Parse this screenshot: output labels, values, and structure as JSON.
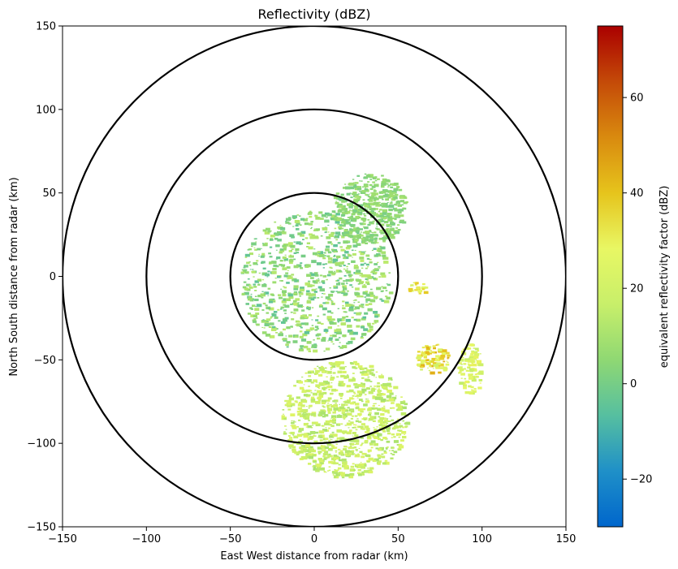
{
  "chart_data": {
    "type": "heatmap",
    "title": "Reflectivity (dBZ)",
    "xlabel": "East West distance from radar (km)",
    "ylabel": "North South distance from radar (km)",
    "xlim": [
      -150,
      150
    ],
    "ylim": [
      -150,
      150
    ],
    "x_ticks": [
      -150,
      -100,
      -50,
      0,
      50,
      100,
      150
    ],
    "y_ticks": [
      -150,
      -100,
      -50,
      0,
      50,
      100,
      150
    ],
    "x_tick_labels": [
      "−150",
      "−100",
      "−50",
      "0",
      "50",
      "100",
      "150"
    ],
    "y_tick_labels": [
      "−150",
      "−100",
      "−50",
      "0",
      "50",
      "100",
      "150"
    ],
    "range_rings_km": [
      50,
      100,
      150
    ],
    "grid": false,
    "colorbar": {
      "label": "equivalent reflectivity factor (dBZ)",
      "range": [
        -30,
        75
      ],
      "ticks": [
        -20,
        0,
        20,
        40,
        60
      ],
      "tick_labels": [
        "−20",
        "0",
        "20",
        "40",
        "60"
      ],
      "colors": [
        "#0066cc",
        "#1f90c8",
        "#56bfa0",
        "#8fd873",
        "#c8ef6a",
        "#e8f764",
        "#e6c41c",
        "#d98a0f",
        "#c44a08",
        "#aa0000"
      ]
    },
    "echo_regions": [
      {
        "name": "central echo",
        "x_range": [
          -45,
          45
        ],
        "y_range": [
          -45,
          40
        ],
        "dbz_range": [
          -5,
          15
        ]
      },
      {
        "name": "northeast band",
        "x_range": [
          10,
          55
        ],
        "y_range": [
          20,
          62
        ],
        "dbz_range": [
          0,
          10
        ]
      },
      {
        "name": "southeast cell",
        "x_range": [
          60,
          80
        ],
        "y_range": [
          -58,
          -40
        ],
        "dbz_range": [
          20,
          45
        ]
      },
      {
        "name": "east cell",
        "x_range": [
          55,
          67
        ],
        "y_range": [
          -10,
          -2
        ],
        "dbz_range": [
          20,
          40
        ]
      },
      {
        "name": "far southeast cells",
        "x_range": [
          85,
          100
        ],
        "y_range": [
          -70,
          -40
        ],
        "dbz_range": [
          15,
          30
        ]
      },
      {
        "name": "southern streaks",
        "x_range": [
          -20,
          55
        ],
        "y_range": [
          -120,
          -50
        ],
        "dbz_range": [
          10,
          25
        ]
      }
    ]
  }
}
